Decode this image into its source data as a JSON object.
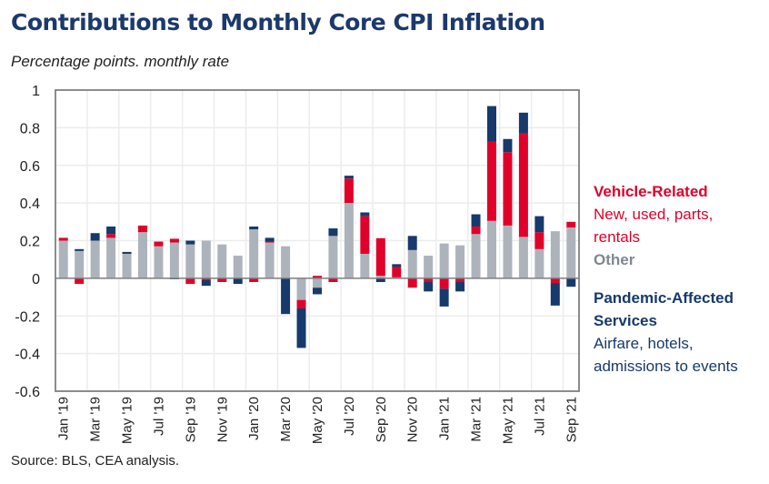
{
  "title": "Contributions to Monthly Core CPI Inflation",
  "subtitle": "Percentage points. monthly rate",
  "source": "Source: BLS, CEA analysis.",
  "legend": {
    "vehicle_title": "Vehicle-Related",
    "vehicle_desc_1": "New, used, parts,",
    "vehicle_desc_2": "rentals",
    "other_title": "Other",
    "pandemic_title_1": "Pandemic-Affected",
    "pandemic_title_2": "Services",
    "pandemic_desc_1": "Airfare, hotels,",
    "pandemic_desc_2": "admissions to events"
  },
  "colors": {
    "other": "#adb3bb",
    "vehicle": "#e0002a",
    "pandemic": "#163a6c",
    "title": "#1b3a6b"
  },
  "chart_data": {
    "type": "bar",
    "stacked": true,
    "title": "Contributions to Monthly Core CPI Inflation",
    "subtitle": "Percentage points. monthly rate",
    "ylim": [
      -0.6,
      1
    ],
    "yticks": [
      1,
      0.8,
      0.6,
      0.4,
      0.2,
      0,
      -0.2,
      -0.4,
      -0.6
    ],
    "ytick_labels": [
      "1",
      "0.8",
      "0.6",
      "0.4",
      "0.2",
      "0",
      "-0.2",
      "-0.4",
      "-0.6"
    ],
    "grid": true,
    "legend_placement": "right",
    "categories": [
      "Jan '19",
      "Feb '19",
      "Mar '19",
      "Apr '19",
      "May '19",
      "Jun '19",
      "Jul '19",
      "Aug '19",
      "Sep '19",
      "Oct '19",
      "Nov '19",
      "Dec '19",
      "Jan '20",
      "Feb '20",
      "Mar '20",
      "Apr '20",
      "May '20",
      "Jun '20",
      "Jul '20",
      "Aug '20",
      "Sep '20",
      "Oct '20",
      "Nov '20",
      "Dec '20",
      "Jan '21",
      "Feb '21",
      "Mar '21",
      "Apr '21",
      "May '21",
      "Jun '21",
      "Jul '21",
      "Aug '21",
      "Sep '21"
    ],
    "xtick_labels": [
      "Jan '19",
      "Mar '19",
      "May '19",
      "Jul '19",
      "Sep '19",
      "Nov '19",
      "Jan '20",
      "Mar '20",
      "May '20",
      "Jul '20",
      "Sep '20",
      "Nov '20",
      "Jan '21",
      "Mar '21",
      "May '21",
      "Jul '21",
      "Sep '21"
    ],
    "series": [
      {
        "name": "Other",
        "color": "#adb3bb",
        "values": [
          0.2,
          0.145,
          0.2,
          0.215,
          0.13,
          0.245,
          0.17,
          0.19,
          0.18,
          0.2,
          0.18,
          0.12,
          0.26,
          0.19,
          0.17,
          -0.115,
          -0.05,
          0.225,
          0.4,
          0.13,
          0.013,
          0.005,
          0.15,
          0.12,
          0.185,
          0.175,
          0.235,
          0.305,
          0.28,
          0.22,
          0.155,
          0.25,
          0.27
        ]
      },
      {
        "name": "Vehicle-Related",
        "color": "#e0002a",
        "values": [
          0.015,
          -0.03,
          0,
          0.02,
          0,
          0.035,
          0.025,
          0.02,
          -0.03,
          -0.01,
          -0.02,
          0,
          -0.02,
          0.005,
          0,
          -0.045,
          0.013,
          -0.02,
          0.13,
          0.2,
          0.2,
          0.055,
          -0.05,
          -0.02,
          -0.055,
          -0.02,
          0.04,
          0.42,
          0.39,
          0.55,
          0.09,
          -0.025,
          0.03
        ]
      },
      {
        "name": "Pandemic-Affected Services",
        "color": "#163a6c",
        "values": [
          0,
          0.01,
          0.04,
          0.04,
          0.01,
          0,
          0,
          -0.005,
          0.02,
          -0.03,
          0,
          -0.03,
          0.015,
          0.02,
          -0.19,
          -0.21,
          -0.035,
          0.04,
          0.015,
          0.02,
          -0.02,
          0.015,
          0.075,
          -0.05,
          -0.095,
          -0.05,
          0.065,
          0.19,
          0.07,
          0.11,
          0.085,
          -0.12,
          -0.045
        ]
      }
    ]
  }
}
